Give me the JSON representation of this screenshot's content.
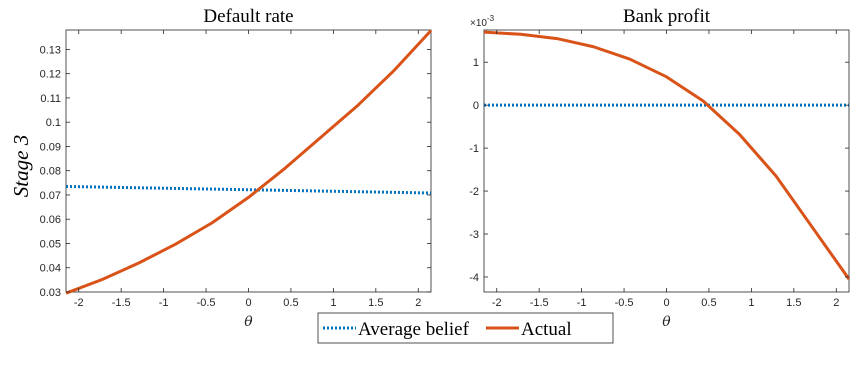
{
  "figure_ylabel": "Stage 3",
  "legend": {
    "items": [
      {
        "label": "Average belief",
        "color": "#0072BD",
        "style": "dotted"
      },
      {
        "label": "Actual",
        "color": "#D95319",
        "style": "solid"
      }
    ],
    "placement": "bottom-center"
  },
  "chart_data": [
    {
      "type": "line",
      "title": "Default rate",
      "xlabel": "θ",
      "ylabel": "",
      "xlim": [
        -2.15,
        2.15
      ],
      "ylim": [
        0.03,
        0.138
      ],
      "xticks": [
        -2,
        -1.5,
        -1,
        -0.5,
        0,
        0.5,
        1,
        1.5,
        2
      ],
      "yticks": [
        0.03,
        0.04,
        0.05,
        0.06,
        0.07,
        0.08,
        0.09,
        0.1,
        0.11,
        0.12,
        0.13
      ],
      "grid": false,
      "series": [
        {
          "name": "Average belief",
          "color": "#0072BD",
          "style": "dotted",
          "x": [
            -2.15,
            2.15
          ],
          "y": [
            0.0735,
            0.0708
          ]
        },
        {
          "name": "Actual",
          "color": "#D95319",
          "style": "solid",
          "x": [
            -2.15,
            -1.72,
            -1.29,
            -0.86,
            -0.43,
            0,
            0.43,
            0.86,
            1.29,
            1.72,
            2.15
          ],
          "y": [
            0.0295,
            0.0352,
            0.042,
            0.0497,
            0.0585,
            0.069,
            0.081,
            0.094,
            0.107,
            0.1215,
            0.1378
          ]
        }
      ]
    },
    {
      "type": "line",
      "title": "Bank profit",
      "xlabel": "θ",
      "ylabel": "",
      "exponent_label": "×10",
      "exponent_power": "-3",
      "xlim": [
        -2.15,
        2.15
      ],
      "ylim": [
        -4.35,
        1.75
      ],
      "xticks": [
        -2,
        -1.5,
        -1,
        -0.5,
        0,
        0.5,
        1,
        1.5,
        2
      ],
      "yticks": [
        -4,
        -3,
        -2,
        -1,
        0,
        1
      ],
      "grid": false,
      "series": [
        {
          "name": "Average belief",
          "color": "#0072BD",
          "style": "dotted",
          "x": [
            -2.15,
            2.15
          ],
          "y": [
            0,
            0
          ]
        },
        {
          "name": "Actual",
          "color": "#D95319",
          "style": "solid",
          "x": [
            -2.15,
            -1.72,
            -1.29,
            -0.86,
            -0.43,
            0,
            0.43,
            0.86,
            1.29,
            1.72,
            2.15
          ],
          "y": [
            1.7,
            1.65,
            1.55,
            1.36,
            1.07,
            0.66,
            0.1,
            -0.68,
            -1.65,
            -2.85,
            -4.05
          ]
        }
      ]
    }
  ]
}
